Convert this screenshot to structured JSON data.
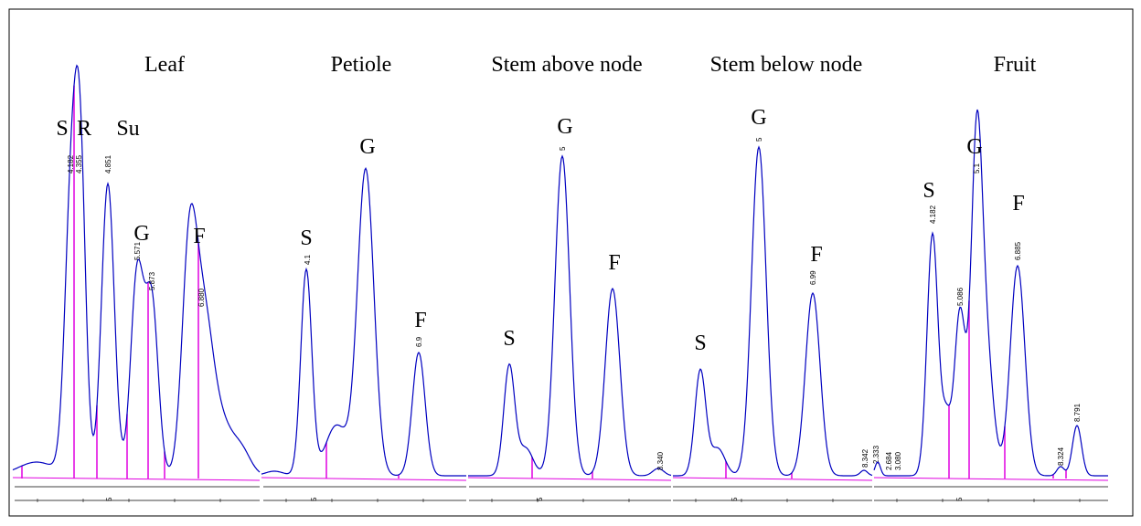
{
  "panels": [
    {
      "title": "Leaf",
      "peaks": [
        "S",
        "R",
        "Su",
        "G",
        "F"
      ],
      "times": [
        "4.182",
        "4.355",
        "4.851",
        "5.571",
        "5.873",
        "6.880"
      ],
      "axis_label": "5"
    },
    {
      "title": "Petiole",
      "peaks": [
        "S",
        "G",
        "F"
      ],
      "times": [
        "4.1",
        "6.9"
      ],
      "axis_label": "5"
    },
    {
      "title": "Stem above node",
      "peaks": [
        "S",
        "G",
        "F"
      ],
      "times": [
        "5",
        "8.340"
      ],
      "axis_label": "5"
    },
    {
      "title": "Stem below node",
      "peaks": [
        "S",
        "G",
        "F"
      ],
      "times": [
        "5",
        "6.99",
        "8.342",
        "2.333"
      ],
      "axis_label": "5"
    },
    {
      "title": "Fruit",
      "peaks": [
        "S",
        "G",
        "F"
      ],
      "times": [
        "2.684",
        "3.080",
        "4.182",
        "5.086",
        "5.1",
        "6.885",
        "8.324",
        "8.791"
      ],
      "axis_label": "5"
    }
  ]
}
